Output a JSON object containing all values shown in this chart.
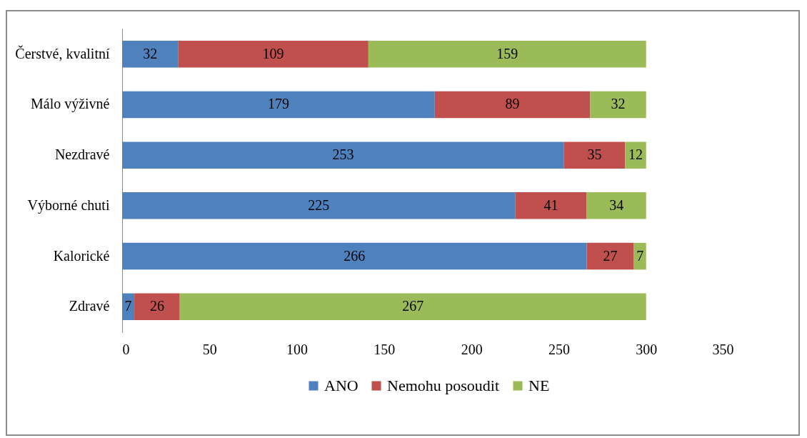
{
  "chart_data": {
    "type": "bar",
    "orientation": "horizontal",
    "stacked": true,
    "categories": [
      "Čerstvé, kvalitní",
      "Málo výživné",
      "Nezdravé",
      "Výborné chuti",
      "Kalorické",
      "Zdravé"
    ],
    "series": [
      {
        "name": "ANO",
        "color": "#4f81bd",
        "values": [
          32,
          179,
          253,
          225,
          266,
          7
        ]
      },
      {
        "name": "Nemohu posoudit",
        "color": "#c0504d",
        "values": [
          109,
          89,
          35,
          41,
          27,
          26
        ]
      },
      {
        "name": "NE",
        "color": "#9bbb59",
        "values": [
          159,
          32,
          12,
          34,
          7,
          267
        ]
      }
    ],
    "xlim": [
      0,
      350
    ],
    "xticks": [
      0,
      50,
      100,
      150,
      200,
      250,
      300,
      350
    ],
    "grid": false,
    "legend": "bottom",
    "data_labels": true
  }
}
